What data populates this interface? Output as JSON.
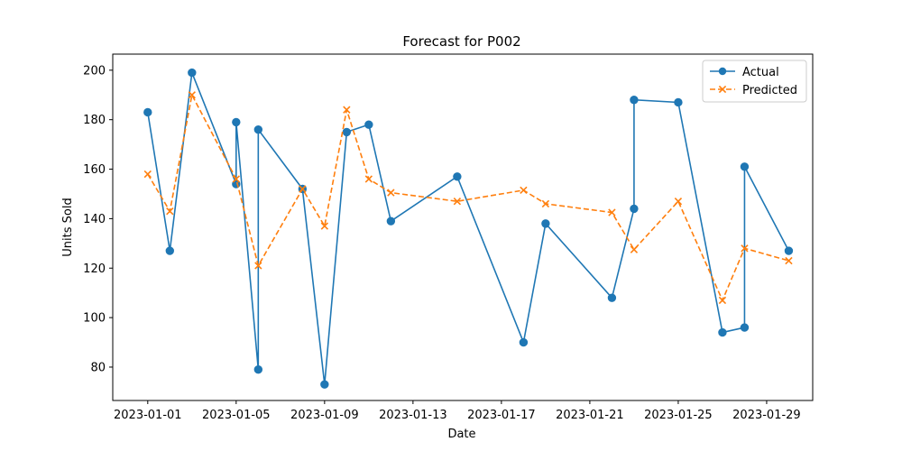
{
  "chart_data": {
    "type": "line",
    "title": "Forecast for P002",
    "xlabel": "Date",
    "ylabel": "Units Sold",
    "xlim": [
      "2022-12-30T10:00",
      "2023-01-31T02:00"
    ],
    "ylim": [
      66.5,
      206.5
    ],
    "x_ticks": [
      "2023-01-01",
      "2023-01-05",
      "2023-01-09",
      "2023-01-13",
      "2023-01-17",
      "2023-01-21",
      "2023-01-25",
      "2023-01-29"
    ],
    "y_ticks": [
      80,
      100,
      120,
      140,
      160,
      180,
      200
    ],
    "grid": false,
    "legend_position": "top-right",
    "series": [
      {
        "name": "Actual",
        "color": "#1f77b4",
        "linestyle": "solid",
        "marker": "circle",
        "points": [
          [
            "2023-01-01",
            183
          ],
          [
            "2023-01-02",
            127
          ],
          [
            "2023-01-03",
            199
          ],
          [
            "2023-01-05",
            154
          ],
          [
            "2023-01-05",
            179
          ],
          [
            "2023-01-06",
            79
          ],
          [
            "2023-01-06",
            176
          ],
          [
            "2023-01-08",
            152
          ],
          [
            "2023-01-09",
            73
          ],
          [
            "2023-01-10",
            175
          ],
          [
            "2023-01-11",
            178
          ],
          [
            "2023-01-12",
            139
          ],
          [
            "2023-01-15",
            157
          ],
          [
            "2023-01-18",
            90
          ],
          [
            "2023-01-19",
            138
          ],
          [
            "2023-01-22",
            108
          ],
          [
            "2023-01-23",
            144
          ],
          [
            "2023-01-23",
            188
          ],
          [
            "2023-01-25",
            187
          ],
          [
            "2023-01-27",
            94
          ],
          [
            "2023-01-28",
            96
          ],
          [
            "2023-01-28",
            161
          ],
          [
            "2023-01-30",
            127
          ]
        ]
      },
      {
        "name": "Predicted",
        "color": "#ff7f0e",
        "linestyle": "dashed",
        "marker": "x",
        "points": [
          [
            "2023-01-01",
            158
          ],
          [
            "2023-01-02",
            143
          ],
          [
            "2023-01-03",
            190
          ],
          [
            "2023-01-05",
            156
          ],
          [
            "2023-01-06",
            121
          ],
          [
            "2023-01-08",
            152
          ],
          [
            "2023-01-09",
            137
          ],
          [
            "2023-01-10",
            184
          ],
          [
            "2023-01-11",
            156
          ],
          [
            "2023-01-12",
            150.5
          ],
          [
            "2023-01-15",
            147
          ],
          [
            "2023-01-18",
            151.5
          ],
          [
            "2023-01-19",
            146
          ],
          [
            "2023-01-22",
            142.5
          ],
          [
            "2023-01-23",
            127.5
          ],
          [
            "2023-01-25",
            147
          ],
          [
            "2023-01-27",
            107
          ],
          [
            "2023-01-28",
            128
          ],
          [
            "2023-01-30",
            123
          ]
        ]
      }
    ]
  }
}
